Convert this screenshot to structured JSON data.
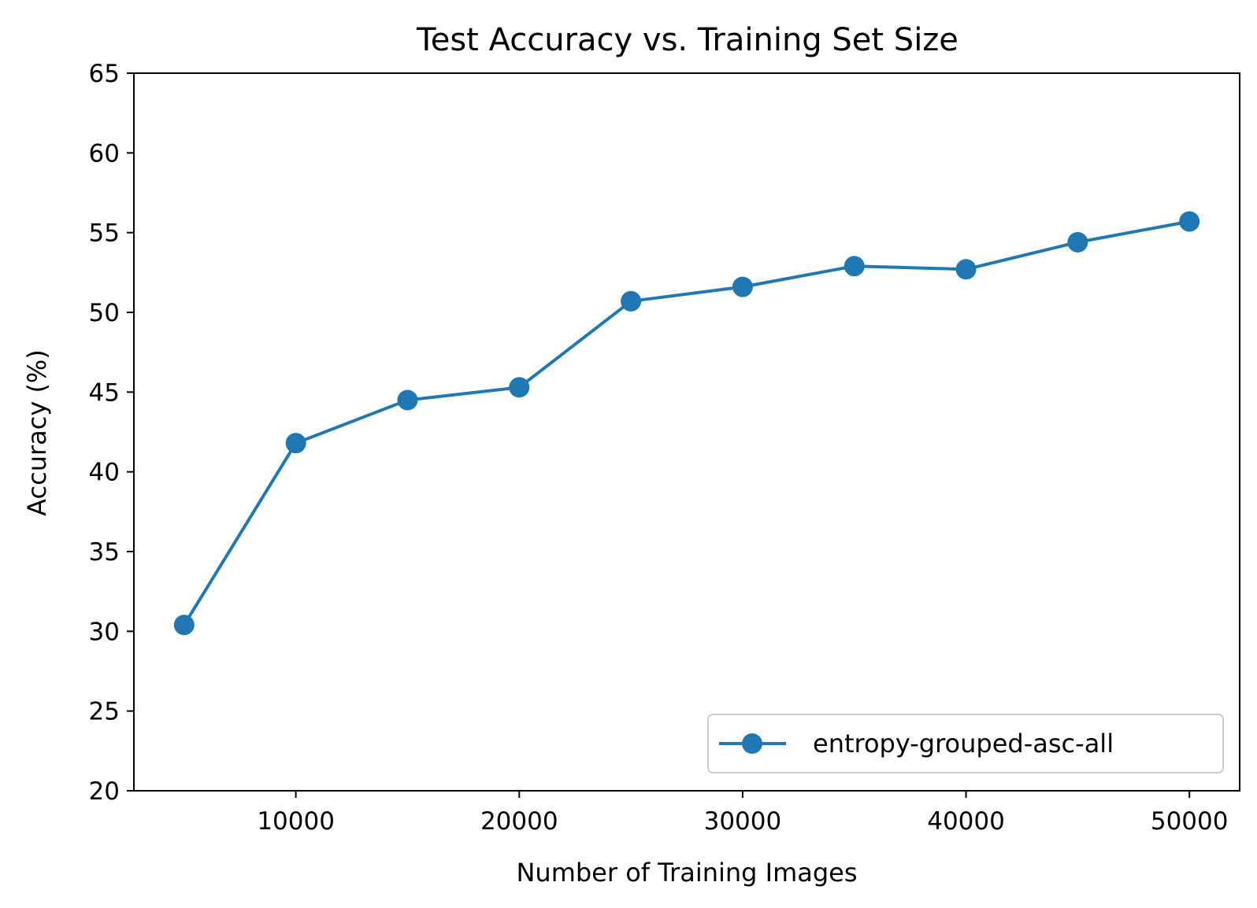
{
  "chart_data": {
    "type": "line",
    "title": "Test Accuracy vs. Training Set Size",
    "xlabel": "Number of Training Images",
    "ylabel": "Accuracy (%)",
    "xlim": [
      2750,
      52250
    ],
    "ylim": [
      20,
      65
    ],
    "xticks": [
      10000,
      20000,
      30000,
      40000,
      50000
    ],
    "yticks": [
      20,
      25,
      30,
      35,
      40,
      45,
      50,
      55,
      60,
      65
    ],
    "grid": false,
    "legend": {
      "placement": "lower-right"
    },
    "series": [
      {
        "name": "entropy-grouped-asc-all",
        "color": "#1f77b4",
        "marker": "circle",
        "x": [
          5000,
          10000,
          15000,
          20000,
          25000,
          30000,
          35000,
          40000,
          45000,
          50000
        ],
        "y": [
          30.4,
          41.8,
          44.5,
          45.3,
          50.7,
          51.6,
          52.9,
          52.7,
          54.4,
          55.7
        ]
      }
    ]
  }
}
